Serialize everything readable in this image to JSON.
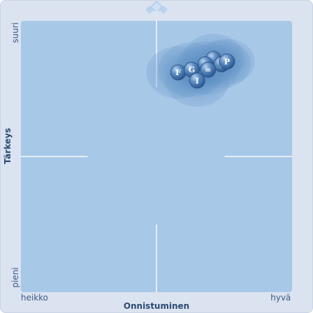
{
  "chart_data": {
    "type": "scatter",
    "title": "",
    "xlabel": "Onnistuminen",
    "ylabel": "Tärkeys",
    "x_tick_low": "heikko",
    "x_tick_high": "hyvä",
    "y_tick_low": "pieni",
    "y_tick_high": "suuri",
    "xlim": [
      0,
      100
    ],
    "ylim": [
      0,
      100
    ],
    "grid": "center cross",
    "points": [
      {
        "label": "",
        "x": 71,
        "y": 86
      },
      {
        "label": "",
        "x": 68,
        "y": 84
      },
      {
        "label": "I",
        "x": 74,
        "y": 84
      },
      {
        "label": "P",
        "x": 76,
        "y": 85
      },
      {
        "label": "F",
        "x": 58,
        "y": 81
      },
      {
        "label": "G",
        "x": 63,
        "y": 82
      },
      {
        "label": "=",
        "x": 69,
        "y": 82
      },
      {
        "label": "I",
        "x": 65,
        "y": 78
      }
    ]
  }
}
